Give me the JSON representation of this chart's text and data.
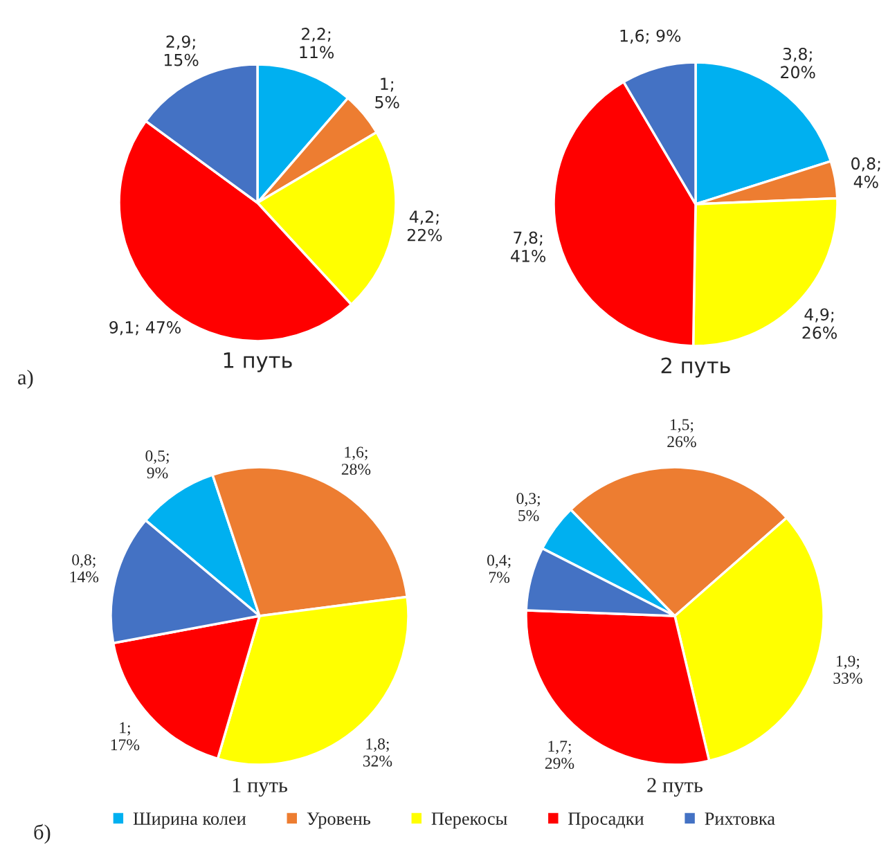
{
  "chart_data": [
    {
      "type": "pie",
      "title": "1 путь",
      "categories": [
        "Ширина колеи",
        "Уровень",
        "Перекосы",
        "Просадки",
        "Рихтовка"
      ],
      "values": [
        2.2,
        1,
        4.2,
        9.1,
        2.9
      ],
      "colors": [
        "#00b0f0",
        "#ed7d31",
        "#ffff00",
        "#ff0000",
        "#4472c4"
      ],
      "value_labels": [
        "2,2;\n11%",
        "1;\n5%",
        "4,2;\n22%",
        "9,1; 47%",
        "2,9;\n15%"
      ],
      "annotations": [
        "а)"
      ],
      "legend": "bottom"
    },
    {
      "type": "pie",
      "title": "2 путь",
      "categories": [
        null,
        null,
        null,
        null,
        null
      ],
      "values": [
        3.8,
        0.8,
        4.9,
        7.8,
        1.6
      ],
      "colors": [
        "#00b0f0",
        "#ed7d31",
        "#ffff00",
        "#ff0000",
        "#4472c4"
      ],
      "value_labels": [
        "3,8;\n20%",
        "0,8;\n4%",
        "4,9;\n26%",
        "7,8;\n41%",
        "1,6; 9%"
      ]
    },
    {
      "type": "pie",
      "title": "1 путь",
      "categories": [
        null,
        null,
        null,
        null,
        null
      ],
      "values": [
        0.5,
        1.6,
        1.8,
        1,
        0.8
      ],
      "colors": [
        "#00b0f0",
        "#ed7d31",
        "#ffff00",
        "#ff0000",
        "#4472c4"
      ],
      "value_labels": [
        "0,5;\n9%",
        "1,6;\n28%",
        "1,8;\n32%",
        "1;\n17%",
        "0,8;\n14%"
      ],
      "annotations": [
        "б)"
      ]
    },
    {
      "type": "pie",
      "title": "2 путь",
      "categories": [
        null,
        null,
        null,
        null,
        null
      ],
      "values": [
        0.3,
        1.5,
        1.9,
        1.7,
        0.4
      ],
      "colors": [
        "#00b0f0",
        "#ed7d31",
        "#ffff00",
        "#ff0000",
        "#4472c4"
      ],
      "value_labels": [
        "0,3;\n5%",
        "1,5;\n26%",
        "1,9;\n33%",
        "1,7;\n29%",
        "0,4;\n7%"
      ]
    }
  ]
}
